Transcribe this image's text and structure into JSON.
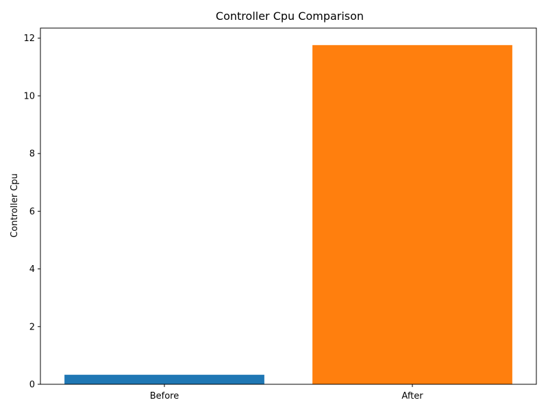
{
  "chart_data": {
    "type": "bar",
    "title": "Controller Cpu Comparison",
    "xlabel": "",
    "ylabel": "Controller Cpu",
    "categories": [
      "Before",
      "After"
    ],
    "values": [
      0.33,
      11.76
    ],
    "colors": [
      "#1f77b4",
      "#ff7f0e"
    ],
    "ylim": [
      0,
      12.35
    ],
    "yticks": [
      0,
      2,
      4,
      6,
      8,
      10,
      12
    ],
    "ytick_labels": [
      "0",
      "2",
      "4",
      "6",
      "8",
      "10",
      "12"
    ],
    "grid": false,
    "legend": "none"
  }
}
